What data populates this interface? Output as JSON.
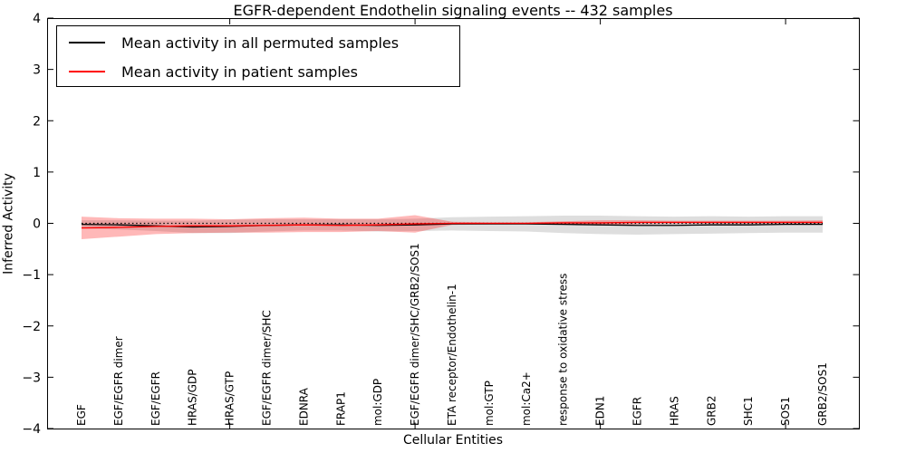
{
  "chart_data": {
    "type": "line",
    "title": "EGFR-dependent Endothelin signaling events -- 432 samples",
    "xlabel": "Cellular Entities",
    "ylabel": "Inferred Activity",
    "ylim": [
      -4,
      4
    ],
    "grid": false,
    "legend_position": "upper left",
    "reference_line": 0,
    "yticks": {
      "values": [
        4,
        3,
        2,
        1,
        0,
        -1,
        -2,
        -3,
        -4
      ],
      "labels": [
        "4",
        "3",
        "2",
        "1",
        "0",
        "−1",
        "−2",
        "−3",
        "−4"
      ]
    },
    "x_major_tick_indices": [
      4,
      9,
      14,
      19
    ],
    "categories": [
      "EGF",
      "EGF/EGFR dimer",
      "EGF/EGFR",
      "HRAS/GDP",
      "HRAS/GTP",
      "EGF/EGFR dimer/SHC",
      "EDNRA",
      "FRAP1",
      "mol:GDP",
      "EGF/EGFR dimer/SHC/GRB2/SOS1",
      "ETA receptor/Endothelin-1",
      "mol:GTP",
      "mol:Ca2+",
      "response to oxidative stress",
      "EDN1",
      "EGFR",
      "HRAS",
      "GRB2",
      "SHC1",
      "SOS1",
      "GRB2/SOS1"
    ],
    "series": [
      {
        "name": "Mean activity in all permuted samples",
        "color": "#000000",
        "band_color": "rgba(0,0,0,0.13)",
        "values": [
          -0.02,
          -0.03,
          -0.05,
          -0.07,
          -0.06,
          -0.04,
          -0.03,
          -0.03,
          -0.04,
          -0.03,
          -0.01,
          -0.01,
          -0.01,
          -0.02,
          -0.03,
          -0.04,
          -0.04,
          -0.03,
          -0.03,
          -0.02,
          -0.02
        ],
        "band_halfwidth": [
          0.08,
          0.09,
          0.1,
          0.12,
          0.13,
          0.12,
          0.11,
          0.11,
          0.12,
          0.12,
          0.13,
          0.14,
          0.15,
          0.17,
          0.18,
          0.18,
          0.17,
          0.17,
          0.16,
          0.16,
          0.16
        ]
      },
      {
        "name": "Mean activity in patient samples",
        "color": "#ff0000",
        "band_color": "rgba(255,0,0,0.28)",
        "values": [
          -0.09,
          -0.08,
          -0.06,
          -0.05,
          -0.05,
          -0.04,
          -0.03,
          -0.04,
          -0.03,
          -0.01,
          0.0,
          0.0,
          0.0,
          0.01,
          0.01,
          0.02,
          0.02,
          0.02,
          0.02,
          0.02,
          0.02
        ],
        "band_halfwidth": [
          0.22,
          0.18,
          0.15,
          0.14,
          0.13,
          0.14,
          0.14,
          0.13,
          0.12,
          0.17,
          0.03,
          0.02,
          0.02,
          0.03,
          0.05,
          0.04,
          0.03,
          0.03,
          0.03,
          0.03,
          0.04
        ]
      }
    ]
  }
}
